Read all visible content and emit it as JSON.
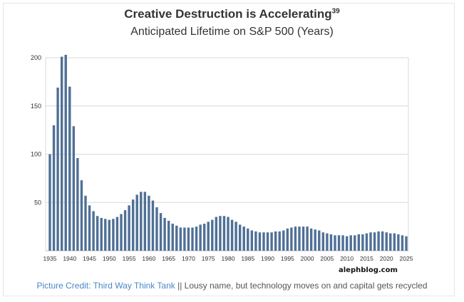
{
  "chart_data": {
    "type": "bar",
    "title": "Creative Destruction is Accelerating",
    "title_superscript": "39",
    "subtitle": "Anticipated Lifetime on S&P 500 (Years)",
    "xlabel": "",
    "ylabel": "",
    "ylim": [
      0,
      200
    ],
    "yticks": [
      50,
      100,
      150,
      200
    ],
    "grid": true,
    "x_start": 1935,
    "xtick_labels": [
      "1935",
      "1940",
      "1945",
      "1950",
      "1955",
      "1960",
      "1965",
      "1970",
      "1975",
      "1980",
      "1985",
      "1990",
      "1995",
      "2000",
      "2005",
      "2010",
      "2015",
      "2020",
      "2025"
    ],
    "values": [
      100,
      130,
      169,
      201,
      203,
      170,
      129,
      96,
      73,
      57,
      47,
      41,
      36,
      34,
      33,
      32,
      33,
      35,
      38,
      42,
      47,
      53,
      58,
      61,
      61,
      57,
      52,
      45,
      39,
      34,
      31,
      28,
      26,
      24,
      24,
      24,
      24,
      25,
      27,
      28,
      30,
      32,
      35,
      36,
      36,
      35,
      32,
      30,
      27,
      25,
      23,
      21,
      20,
      19,
      19,
      19,
      19,
      20,
      20,
      21,
      23,
      24,
      25,
      25,
      25,
      25,
      23,
      22,
      21,
      19,
      18,
      17,
      16,
      16,
      16,
      15,
      16,
      16,
      17,
      17,
      18,
      19,
      19,
      20,
      20,
      19,
      18,
      18,
      17,
      16,
      15
    ],
    "bar_color": "#4f7096"
  },
  "watermark": "alephblog.com",
  "caption": {
    "link_text": "Picture Credit: Third Way Think Tank",
    "text": " || Lousy name, but technology moves on and capital gets recycled"
  }
}
